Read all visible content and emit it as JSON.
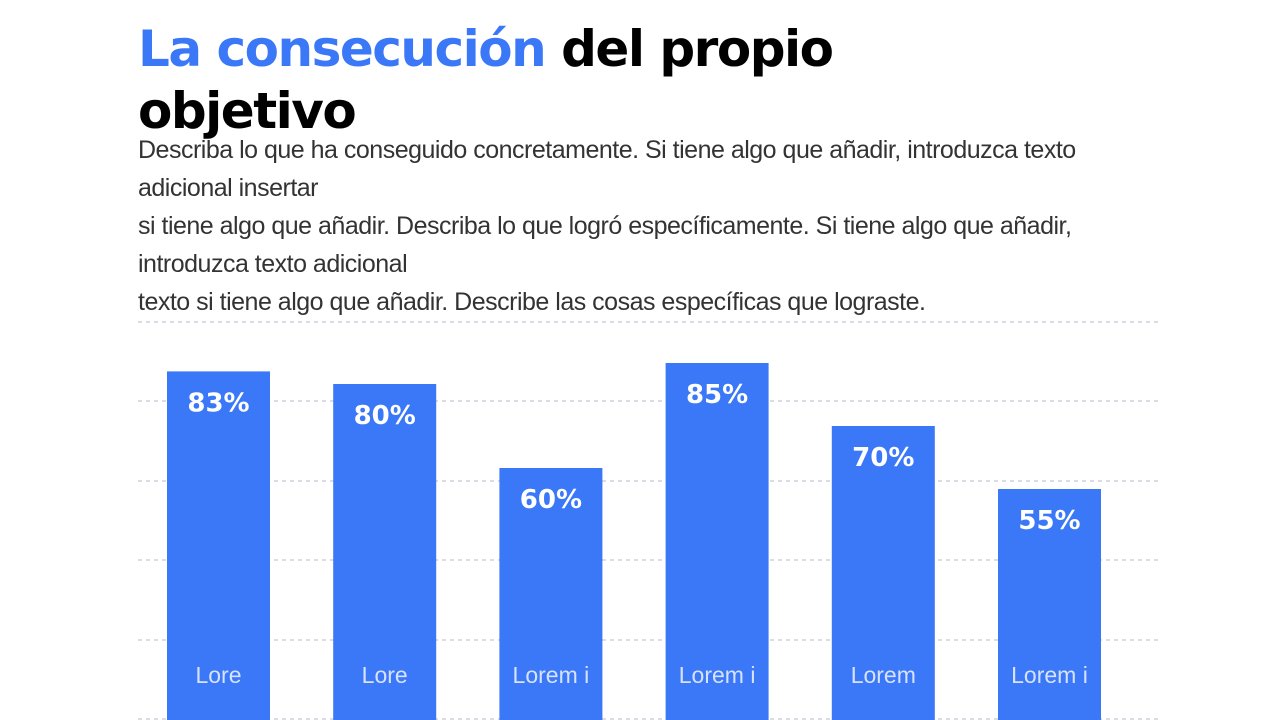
{
  "title": {
    "accent": "La consecución",
    "rest": " del propio objetivo"
  },
  "body_lines": [
    "Describa lo que ha conseguido concretamente. Si tiene algo que añadir, introduzca texto adicional insertar",
    "si tiene algo que añadir. Describa lo que logró específicamente. Si tiene algo que añadir, introduzca texto adicional",
    "texto si tiene algo que añadir. Describe las cosas específicas que lograste."
  ],
  "colors": {
    "accent": "#3b78f7",
    "bar": "#3b78f7",
    "grid": "#b8b8c8"
  },
  "chart_data": {
    "type": "bar",
    "categories": [
      "Lore",
      "Lore",
      "Lorem i",
      "Lorem i",
      "Lorem",
      "Lorem i"
    ],
    "values": [
      83,
      80,
      60,
      85,
      70,
      55
    ],
    "data_labels": [
      "83%",
      "80%",
      "60%",
      "85%",
      "70%",
      "55%"
    ],
    "ylim": [
      0,
      100
    ],
    "grid": true
  }
}
